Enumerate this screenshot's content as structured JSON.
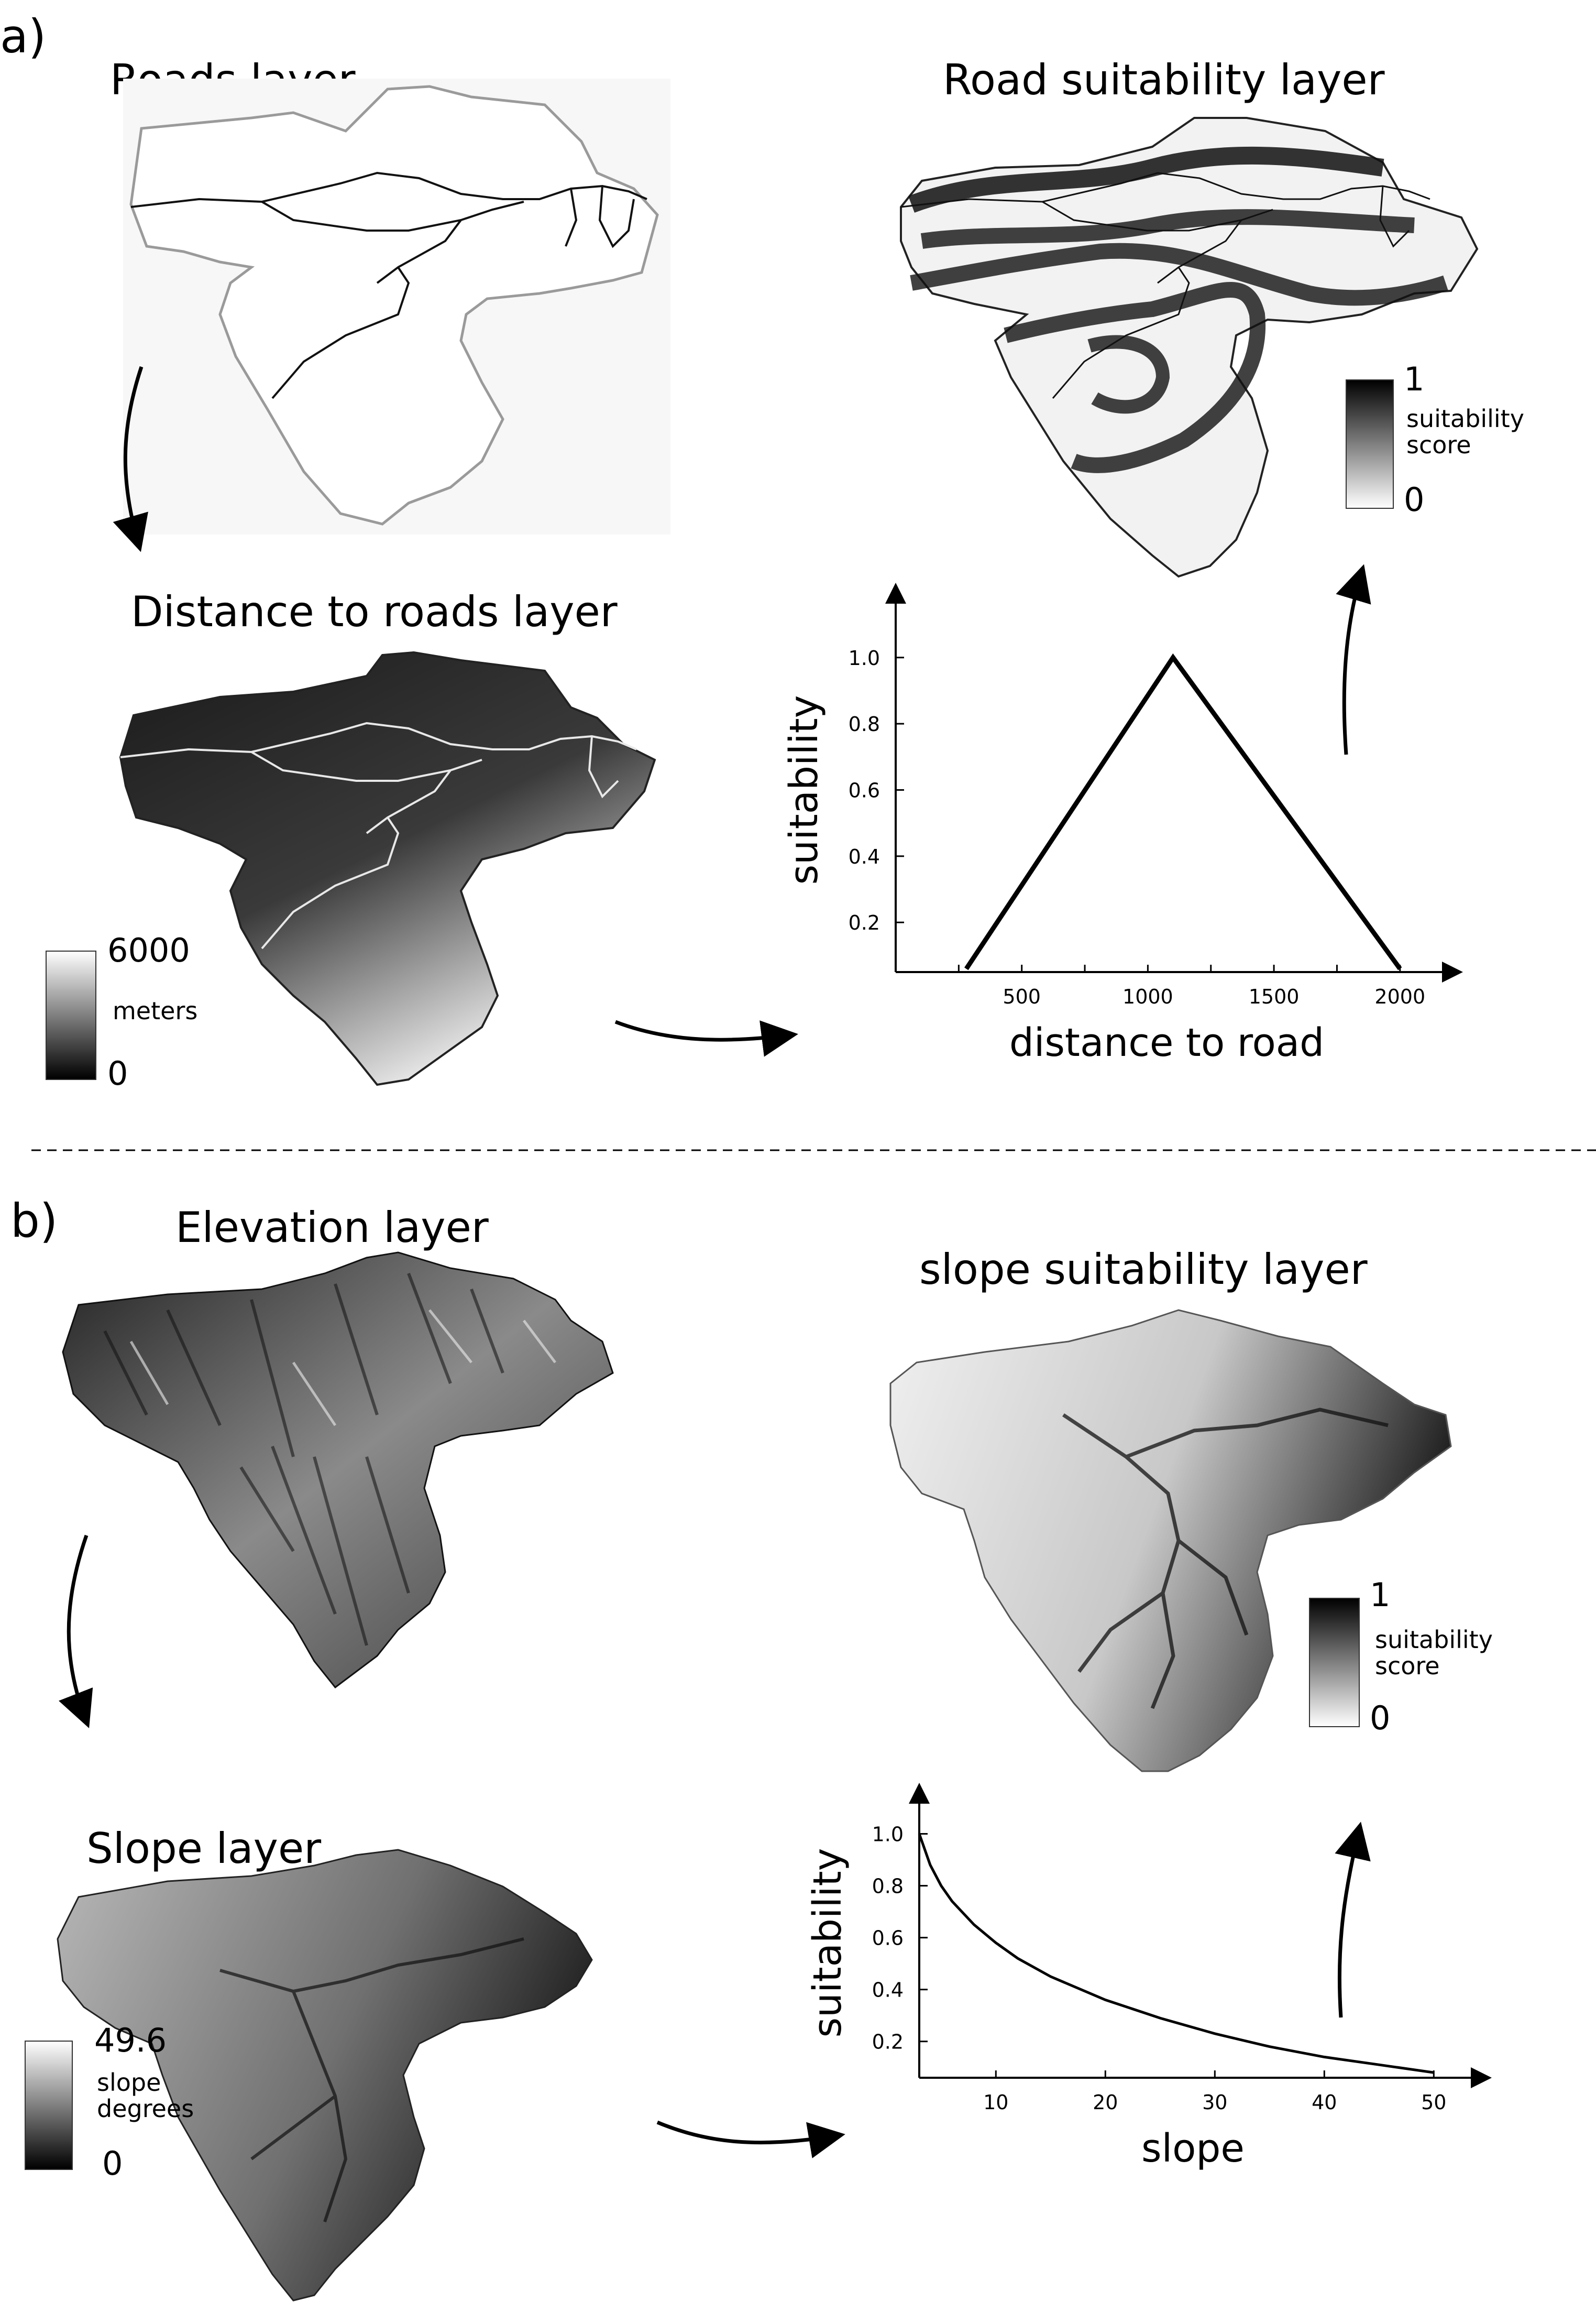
{
  "section_a": {
    "label": "a)",
    "roads_title": "Roads layer",
    "road_suitability_title": "Road suitability layer",
    "distance_title": "Distance to roads layer",
    "distance_legend": {
      "max": "6000",
      "unit": "meters",
      "min": "0"
    },
    "road_suit_legend": {
      "max": "1",
      "label_1": "suitability",
      "label_2": "score",
      "min": "0"
    }
  },
  "section_b": {
    "label": "b)",
    "elevation_title": "Elevation layer",
    "slope_suitability_title": "slope suitability layer",
    "slope_title": "Slope layer",
    "slope_legend": {
      "max": "49.6",
      "label_1": "slope",
      "label_2": "degrees",
      "min": "0"
    },
    "slope_suit_legend": {
      "max": "1",
      "label_1": "suitability",
      "label_2": "score",
      "min": "0"
    }
  },
  "colors": {
    "line": "#000000",
    "boundary_gray": "#9a9a9a",
    "background": "#ffffff"
  },
  "chart_data": [
    {
      "type": "line",
      "xlabel": "distance to road",
      "ylabel": "suitability",
      "x_ticks": [
        500,
        1000,
        1500,
        2000
      ],
      "y_ticks": [
        0.2,
        0.4,
        0.6,
        0.8,
        1.0
      ],
      "x_tick_labels": [
        "500",
        "1000",
        "1500",
        "2000"
      ],
      "y_tick_labels": [
        "0.2",
        "0.4",
        "0.6",
        "0.8",
        "1.0"
      ],
      "xlim": [
        0,
        2150
      ],
      "ylim": [
        0.05,
        1.15
      ],
      "points": [
        [
          280,
          0.06
        ],
        [
          1100,
          1.0
        ],
        [
          2000,
          0.06
        ]
      ]
    },
    {
      "type": "line",
      "xlabel": "slope",
      "ylabel": "suitability",
      "x_ticks": [
        10,
        20,
        30,
        40,
        50
      ],
      "y_ticks": [
        0.2,
        0.4,
        0.6,
        0.8,
        1.0
      ],
      "x_tick_labels": [
        "10",
        "20",
        "30",
        "40",
        "50"
      ],
      "y_tick_labels": [
        "0.2",
        "0.4",
        "0.6",
        "0.8",
        "1.0"
      ],
      "xlim": [
        3,
        53
      ],
      "ylim": [
        0.06,
        1.1
      ],
      "points": [
        [
          3,
          1.0
        ],
        [
          4,
          0.88
        ],
        [
          5,
          0.8
        ],
        [
          6,
          0.74
        ],
        [
          8,
          0.65
        ],
        [
          10,
          0.58
        ],
        [
          12,
          0.52
        ],
        [
          15,
          0.45
        ],
        [
          20,
          0.36
        ],
        [
          25,
          0.29
        ],
        [
          30,
          0.23
        ],
        [
          35,
          0.18
        ],
        [
          40,
          0.14
        ],
        [
          45,
          0.11
        ],
        [
          50,
          0.08
        ]
      ]
    }
  ]
}
